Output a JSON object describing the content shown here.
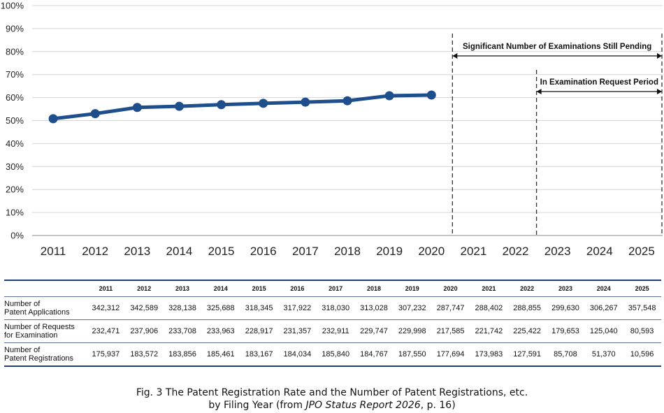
{
  "chart_data": {
    "type": "line",
    "x": [
      "2011",
      "2012",
      "2013",
      "2014",
      "2015",
      "2016",
      "2017",
      "2018",
      "2019",
      "2020",
      "2021",
      "2022",
      "2023",
      "2024",
      "2025"
    ],
    "series": [
      {
        "values": [
          50.8,
          53.0,
          55.7,
          56.2,
          56.9,
          57.5,
          58.0,
          58.6,
          60.8,
          61.1,
          null,
          null,
          null,
          null,
          null
        ],
        "color": "#1f4e8c"
      }
    ],
    "y_ticks": [
      "0%",
      "10%",
      "20%",
      "30%",
      "40%",
      "50%",
      "60%",
      "70%",
      "80%",
      "90%",
      "100%"
    ],
    "ylim": [
      0,
      100
    ],
    "grid": true,
    "annotations": [
      {
        "text": "Significant Number of Examinations Still Pending",
        "from": "2021",
        "to": "2025"
      },
      {
        "text": "In Examination Request Period",
        "from": "2023",
        "to": "2025"
      }
    ]
  },
  "table": {
    "columns": [
      "2011",
      "2012",
      "2013",
      "2014",
      "2015",
      "2016",
      "2017",
      "2018",
      "2019",
      "2020",
      "2021",
      "2022",
      "2023",
      "2024",
      "2025"
    ],
    "rows": [
      {
        "label": "Number of\nPatent Applications",
        "values": [
          "342,312",
          "342,589",
          "328,138",
          "325,688",
          "318,345",
          "317,922",
          "318,030",
          "313,028",
          "307,232",
          "287,747",
          "288,402",
          "288,855",
          "299,630",
          "306,267",
          "357,548"
        ]
      },
      {
        "label": "Number of Requests\nfor Examination",
        "values": [
          "232,471",
          "237,906",
          "233,708",
          "233,963",
          "228,917",
          "231,357",
          "232,911",
          "229,747",
          "229,998",
          "217,585",
          "221,742",
          "225,422",
          "179,653",
          "125,040",
          "80,593"
        ]
      },
      {
        "label": "Number of\nPatent Registrations",
        "values": [
          "175,937",
          "183,572",
          "183,856",
          "185,461",
          "183,167",
          "184,034",
          "185,840",
          "184,767",
          "187,550",
          "177,694",
          "173,983",
          "127,591",
          "85,708",
          "51,370",
          "10,596"
        ]
      }
    ]
  },
  "caption": {
    "line1": "Fig. 3  The Patent Registration Rate and the Number of Patent Registrations, etc.",
    "line2_prefix": "by Filing Year (from ",
    "line2_italic": "JPO Status Report 2026",
    "line2_suffix": ", p. 16)"
  }
}
